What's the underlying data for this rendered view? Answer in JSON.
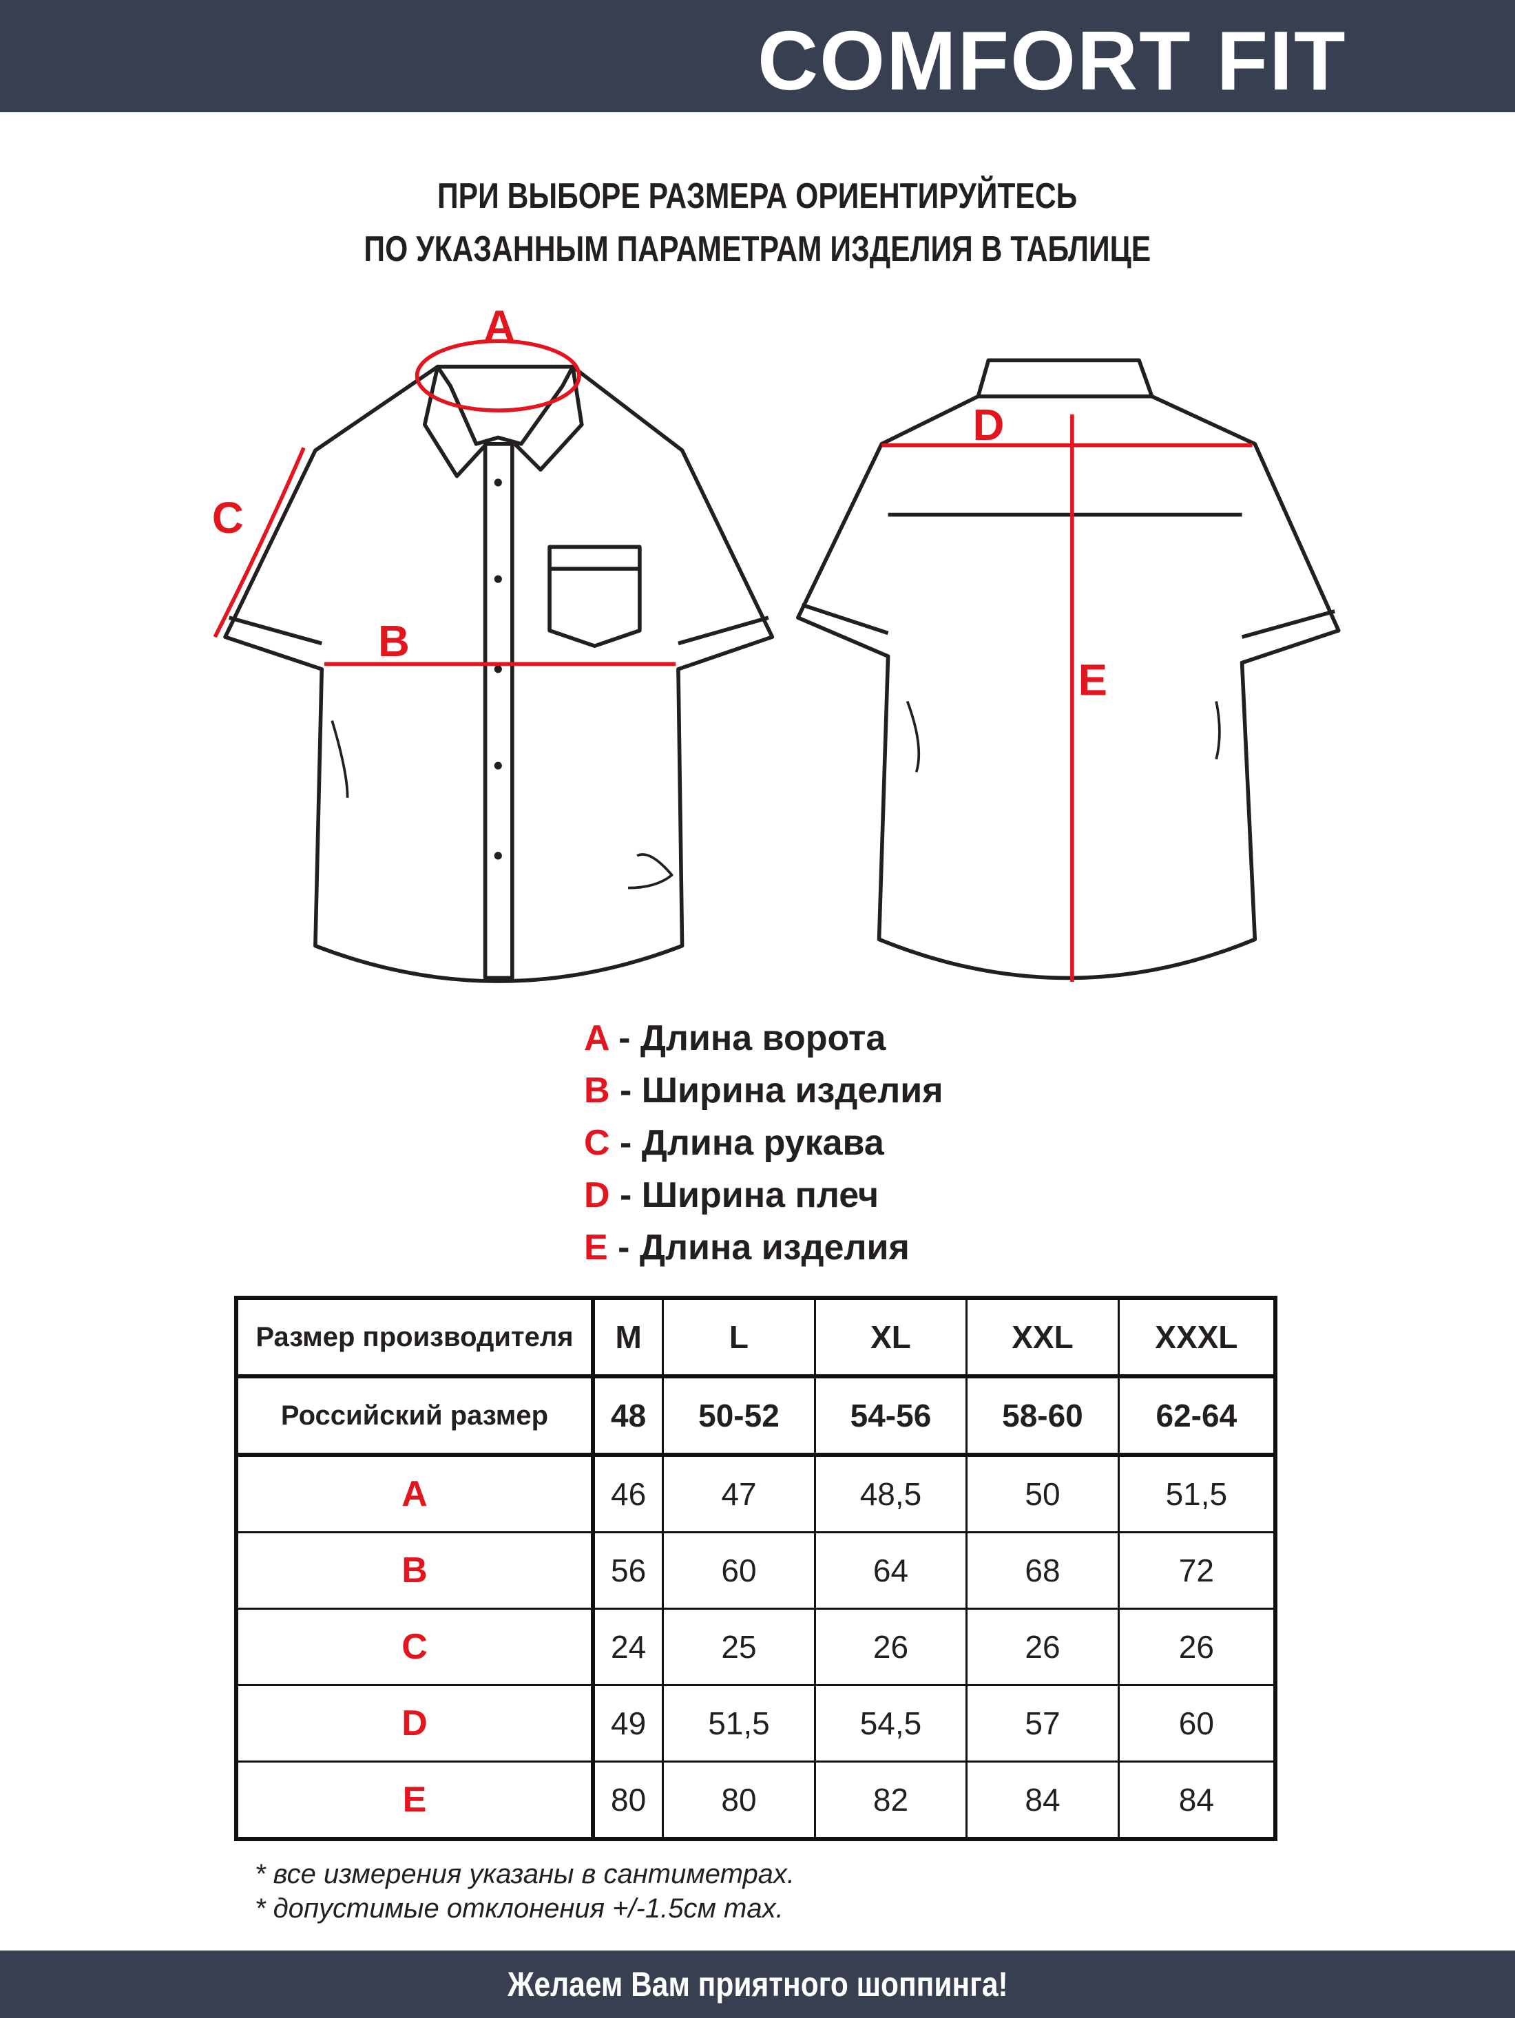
{
  "header": {
    "brand": "COMFORT FIT"
  },
  "title": {
    "line1": "ПРИ ВЫБОРЕ РАЗМЕРА ОРИЕНТИРУЙТЕСЬ",
    "line2": "ПО УКАЗАННЫМ ПАРАМЕТРАМ ИЗДЕЛИЯ В ТАБЛИЦЕ"
  },
  "diagram": {
    "labels": [
      "A",
      "B",
      "C",
      "D",
      "E"
    ],
    "accent_color": "#e3161f"
  },
  "legend": [
    {
      "key": "A",
      "text": " - Длина ворота"
    },
    {
      "key": "B",
      "text": " - Ширина изделия"
    },
    {
      "key": "C",
      "text": " - Длина рукава"
    },
    {
      "key": "D",
      "text": " - Ширина плеч"
    },
    {
      "key": "E",
      "text": " - Длина изделия"
    }
  ],
  "table": {
    "header_label": "Размер производителя",
    "sizes": [
      "M",
      "L",
      "XL",
      "XXL",
      "XXXL"
    ],
    "ru_label": "Российский размер",
    "ru_sizes": [
      "48",
      "50-52",
      "54-56",
      "58-60",
      "62-64"
    ],
    "rows": [
      {
        "key": "A",
        "values": [
          "46",
          "47",
          "48,5",
          "50",
          "51,5"
        ]
      },
      {
        "key": "B",
        "values": [
          "56",
          "60",
          "64",
          "68",
          "72"
        ]
      },
      {
        "key": "C",
        "values": [
          "24",
          "25",
          "26",
          "26",
          "26"
        ]
      },
      {
        "key": "D",
        "values": [
          "49",
          "51,5",
          "54,5",
          "57",
          "60"
        ]
      },
      {
        "key": "E",
        "values": [
          "80",
          "80",
          "82",
          "84",
          "84"
        ]
      }
    ]
  },
  "notes": [
    "* все измерения указаны в сантиметрах.",
    "* допустимые отклонения +/-1.5см max."
  ],
  "footer": {
    "slogan": "Желаем Вам приятного шоппинга!"
  }
}
